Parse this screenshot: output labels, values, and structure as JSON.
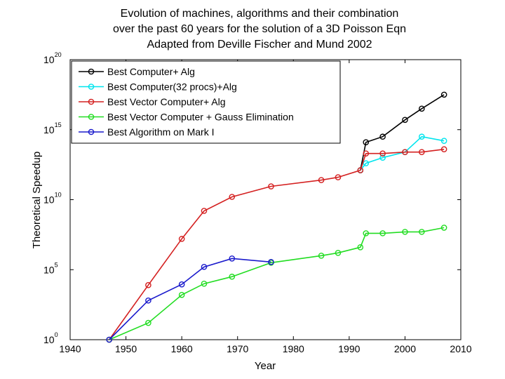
{
  "chart_data": {
    "type": "line",
    "title": [
      "Evolution of machines, algorithms and their combination",
      "over the past 60 years for the solution of a 3D Poisson Eqn",
      "Adapted from Deville Fischer and Mund 2002"
    ],
    "xlabel": "Year",
    "ylabel": "Theoretical Speedup",
    "xlim": [
      1940,
      2010
    ],
    "ylim_log10": [
      0,
      20
    ],
    "xticks": [
      "1940",
      "1950",
      "1960",
      "1970",
      "1980",
      "1990",
      "2000",
      "2010"
    ],
    "yticks": [
      {
        "base": "10",
        "exp": "0"
      },
      {
        "base": "10",
        "exp": "5"
      },
      {
        "base": "10",
        "exp": "10"
      },
      {
        "base": "10",
        "exp": "15"
      },
      {
        "base": "10",
        "exp": "20"
      }
    ],
    "legend_position": "top-left",
    "series": [
      {
        "name": "Best Computer+ Alg",
        "color": "#000000",
        "x": [
          1992,
          1993,
          1996,
          2000,
          2003,
          2007
        ],
        "log10y": [
          12.1,
          14.1,
          14.5,
          15.7,
          16.5,
          17.5
        ]
      },
      {
        "name": "Best Computer(32 procs)+Alg",
        "color": "#00e5ee",
        "x": [
          1992,
          1993,
          1996,
          2000,
          2003,
          2007
        ],
        "log10y": [
          12.1,
          12.6,
          13.0,
          13.4,
          14.5,
          14.2
        ]
      },
      {
        "name": "Best Vector Computer+ Alg",
        "color": "#d42020",
        "x": [
          1947,
          1954,
          1960,
          1964,
          1969,
          1976,
          1985,
          1988,
          1992,
          1993,
          1996,
          2000,
          2003,
          2007
        ],
        "log10y": [
          0,
          3.9,
          7.2,
          9.2,
          10.2,
          10.95,
          11.4,
          11.6,
          12.1,
          13.3,
          13.3,
          13.4,
          13.4,
          13.6
        ]
      },
      {
        "name": "Best Vector Computer + Gauss Elimination",
        "color": "#22dd22",
        "x": [
          1947,
          1954,
          1960,
          1964,
          1969,
          1976,
          1985,
          1988,
          1992,
          1993,
          1996,
          2000,
          2003,
          2007
        ],
        "log10y": [
          0,
          1.2,
          3.2,
          4.0,
          4.5,
          5.5,
          6.0,
          6.2,
          6.6,
          7.6,
          7.6,
          7.7,
          7.7,
          8.0
        ]
      },
      {
        "name": "Best Algorithm on Mark I",
        "color": "#1a1acc",
        "x": [
          1947,
          1954,
          1960,
          1964,
          1969,
          1976
        ],
        "log10y": [
          0,
          2.8,
          3.95,
          5.2,
          5.8,
          5.55
        ]
      }
    ]
  }
}
